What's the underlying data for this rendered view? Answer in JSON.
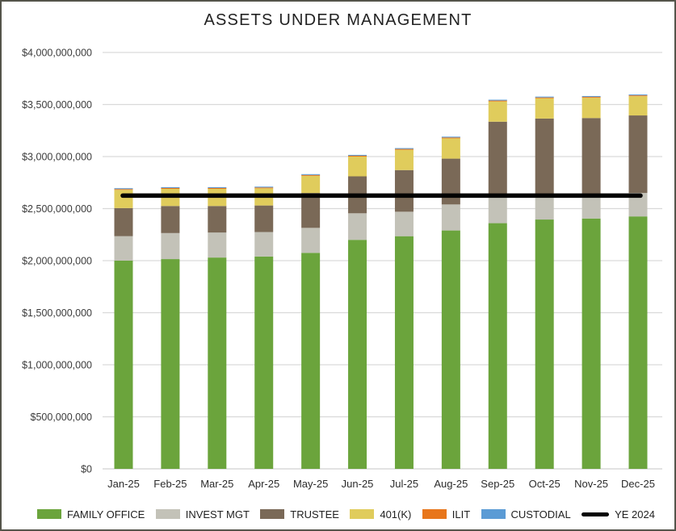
{
  "title": "ASSETS UNDER MANAGEMENT",
  "frame_border_color": "#54544a",
  "chart_data": {
    "type": "bar",
    "stacked": true,
    "title": "ASSETS UNDER MANAGEMENT",
    "xlabel": "",
    "ylabel": "",
    "ylim": [
      0,
      4000000000
    ],
    "ytick_step": 500000000,
    "ytick_format": "$#,##0",
    "ytick_labels": [
      "$0",
      "$500,000,000",
      "$1,000,000,000",
      "$1,500,000,000",
      "$2,000,000,000",
      "$2,500,000,000",
      "$3,000,000,000",
      "$3,500,000,000",
      "$4,000,000,000"
    ],
    "grid": true,
    "grid_color": "#d9d9d9",
    "axis_text_color": "#3b3b3b",
    "legend_position": "bottom",
    "categories": [
      "Jan-25",
      "Feb-25",
      "Mar-25",
      "Apr-25",
      "May-25",
      "Jun-25",
      "Jul-25",
      "Aug-25",
      "Sep-25",
      "Oct-25",
      "Nov-25",
      "Dec-25"
    ],
    "series": [
      {
        "name": "FAMILY OFFICE",
        "color": "#6ba43c",
        "values": [
          2000000000,
          2015000000,
          2030000000,
          2040000000,
          2075000000,
          2200000000,
          2235000000,
          2290000000,
          2360000000,
          2395000000,
          2405000000,
          2425000000
        ]
      },
      {
        "name": "INVEST MGT",
        "color": "#c3c2b8",
        "values": [
          235000000,
          250000000,
          240000000,
          235000000,
          240000000,
          255000000,
          235000000,
          250000000,
          260000000,
          245000000,
          230000000,
          225000000
        ]
      },
      {
        "name": "TRUSTEE",
        "color": "#7a6957",
        "values": [
          270000000,
          260000000,
          255000000,
          255000000,
          335000000,
          355000000,
          400000000,
          440000000,
          715000000,
          725000000,
          735000000,
          745000000
        ]
      },
      {
        "name": "401(K)",
        "color": "#e0cc5c",
        "values": [
          175000000,
          165000000,
          165000000,
          165000000,
          165000000,
          190000000,
          195000000,
          195000000,
          195000000,
          195000000,
          195000000,
          185000000
        ]
      },
      {
        "name": "ILIT",
        "color": "#e8761b",
        "values": [
          8000000,
          8000000,
          8000000,
          8000000,
          8000000,
          8000000,
          8000000,
          8000000,
          8000000,
          8000000,
          8000000,
          8000000
        ]
      },
      {
        "name": "CUSTODIAL",
        "color": "#5b9bd5",
        "values": [
          8000000,
          8000000,
          8000000,
          8000000,
          8000000,
          8000000,
          8000000,
          8000000,
          8000000,
          8000000,
          8000000,
          8000000
        ]
      }
    ],
    "reference_line": {
      "name": "YE 2024",
      "value": 2625000000,
      "color": "#000000"
    }
  }
}
